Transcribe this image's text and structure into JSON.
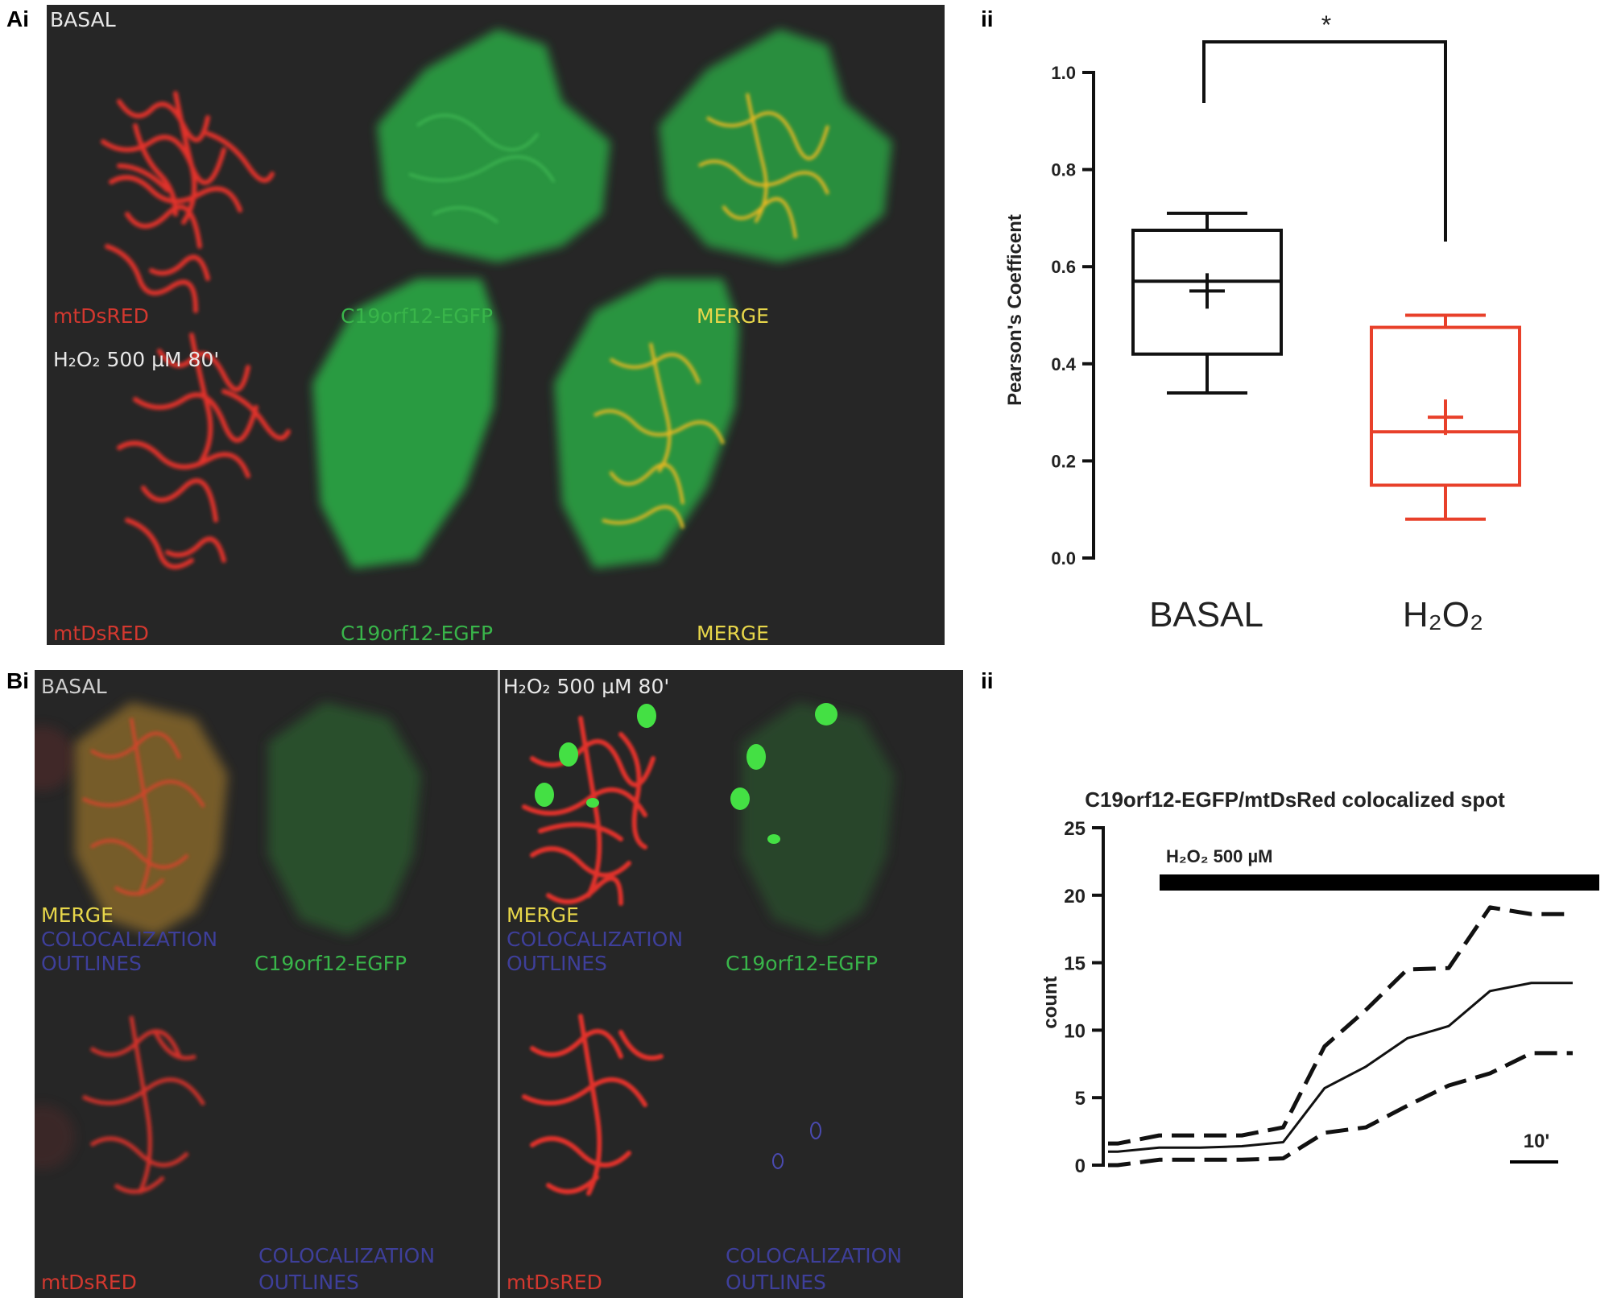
{
  "panelA": {
    "letter": "Ai",
    "sub": "ii",
    "condition_basal": "BASAL",
    "condition_h2o2": "H₂O₂ 500 µM 80'",
    "top_labels": [
      "mtDsRED",
      "C19orf12-EGFP",
      "MERGE"
    ],
    "bottom_labels": [
      "mtDsRED",
      "C19orf12-EGFP",
      "MERGE"
    ]
  },
  "panelB": {
    "letter": "Bi",
    "sub": "ii",
    "left_condition": "BASAL",
    "right_condition": "H₂O₂ 500 µM 80'",
    "merge": "MERGE",
    "coloc_line1": "COLOCALIZATION",
    "coloc_line2": "OUTLINES",
    "egfp": "C19orf12-EGFP",
    "red": "mtDsRED"
  },
  "chart_data": [
    {
      "type": "box",
      "ylabel": "Pearson's Coefficent",
      "ylim": [
        0,
        1.0
      ],
      "yticks": [
        "0.0",
        "0.2",
        "0.4",
        "0.6",
        "0.8",
        "1.0"
      ],
      "categories": [
        "BASAL",
        "H₂O₂"
      ],
      "boxes": [
        {
          "name": "BASAL",
          "whisker_low": 0.34,
          "q1": 0.42,
          "median": 0.57,
          "q3": 0.675,
          "whisker_high": 0.71,
          "mean": 0.55,
          "color": "#111111"
        },
        {
          "name": "H₂O₂",
          "whisker_low": 0.08,
          "q1": 0.15,
          "median": 0.26,
          "q3": 0.475,
          "whisker_high": 0.5,
          "mean": 0.29,
          "color": "#e8402a"
        }
      ],
      "significance": "*"
    },
    {
      "type": "line",
      "title": "C19orf12-EGFP/mtDsRed colocalized spot",
      "ylabel": "count",
      "ylim": [
        0,
        25
      ],
      "yticks": [
        "0",
        "5",
        "10",
        "15",
        "20",
        "25"
      ],
      "treatment_label": "H₂O₂ 500 µM",
      "scale_bar_label": "10'",
      "series": [
        {
          "style": "dashed",
          "x": [
            0,
            1,
            2,
            3,
            4,
            5,
            6,
            7,
            8,
            9,
            10,
            11
          ],
          "y": [
            1.6,
            2.2,
            2.2,
            2.2,
            2.8,
            8.8,
            11.5,
            14.5,
            14.6,
            19.1,
            18.6,
            18.6
          ]
        },
        {
          "style": "solid",
          "x": [
            0,
            1,
            2,
            3,
            4,
            5,
            6,
            7,
            8,
            9,
            10,
            11
          ],
          "y": [
            1.0,
            1.3,
            1.3,
            1.4,
            1.7,
            5.7,
            7.3,
            9.4,
            10.3,
            12.9,
            13.5,
            13.5
          ]
        },
        {
          "style": "dashed",
          "x": [
            0,
            1,
            2,
            3,
            4,
            5,
            6,
            7,
            8,
            9,
            10,
            11
          ],
          "y": [
            0.0,
            0.4,
            0.4,
            0.4,
            0.5,
            2.4,
            2.8,
            4.4,
            5.9,
            6.8,
            8.3,
            8.3
          ]
        }
      ]
    }
  ]
}
